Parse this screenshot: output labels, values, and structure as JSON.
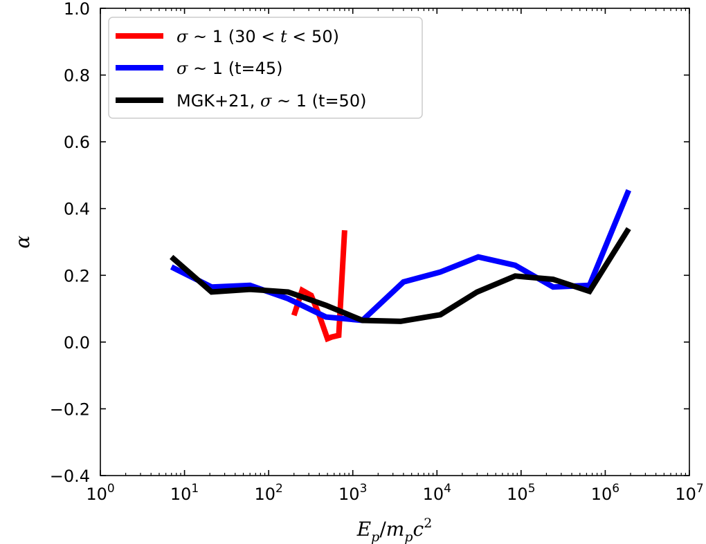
{
  "chart_data": {
    "type": "line",
    "title": "",
    "xlabel": "E_p/m_pc^2",
    "xlabel_parts": {
      "E": "E",
      "p": "p",
      "slash": "/",
      "m": "m",
      "c": "c",
      "two": "2"
    },
    "ylabel": "α",
    "xscale": "log",
    "xlim": [
      1,
      10000000
    ],
    "ylim": [
      -0.4,
      1.0
    ],
    "x_ticks": [
      {
        "value": 1,
        "base": "10",
        "exp": "0"
      },
      {
        "value": 10,
        "base": "10",
        "exp": "1"
      },
      {
        "value": 100,
        "base": "10",
        "exp": "2"
      },
      {
        "value": 1000,
        "base": "10",
        "exp": "3"
      },
      {
        "value": 10000,
        "base": "10",
        "exp": "4"
      },
      {
        "value": 100000,
        "base": "10",
        "exp": "5"
      },
      {
        "value": 1000000,
        "base": "10",
        "exp": "6"
      },
      {
        "value": 10000000,
        "base": "10",
        "exp": "7"
      }
    ],
    "y_ticks": [
      {
        "value": -0.4,
        "label": "−0.4"
      },
      {
        "value": -0.2,
        "label": "−0.2"
      },
      {
        "value": 0.0,
        "label": "0.0"
      },
      {
        "value": 0.2,
        "label": "0.2"
      },
      {
        "value": 0.4,
        "label": "0.4"
      },
      {
        "value": 0.6,
        "label": "0.6"
      },
      {
        "value": 0.8,
        "label": "0.8"
      },
      {
        "value": 1.0,
        "label": "1.0"
      }
    ],
    "legend_position": "top-left",
    "series": [
      {
        "name": "σ ~ 1 (30 < t < 50)",
        "color": "#ff0000",
        "x": [
          200,
          250,
          320,
          400,
          500,
          560,
          680,
          800
        ],
        "y": [
          0.08,
          0.155,
          0.14,
          0.08,
          0.01,
          0.015,
          0.02,
          0.335
        ]
      },
      {
        "name": "σ ~ 1 (t=45)",
        "color": "#0000ff",
        "x": [
          7,
          21,
          60,
          170,
          480,
          1300,
          4000,
          11000,
          31000,
          85000,
          240000,
          650000,
          1900000
        ],
        "y": [
          0.225,
          0.165,
          0.17,
          0.13,
          0.075,
          0.065,
          0.18,
          0.21,
          0.255,
          0.23,
          0.165,
          0.17,
          0.455
        ]
      },
      {
        "name": "MGK+21, σ ~ 1 (t=50)",
        "color": "#000000",
        "x": [
          7,
          21,
          60,
          170,
          480,
          1300,
          3700,
          11000,
          30000,
          85000,
          240000,
          650000,
          1900000
        ],
        "y": [
          0.255,
          0.15,
          0.158,
          0.15,
          0.11,
          0.065,
          0.062,
          0.082,
          0.15,
          0.198,
          0.188,
          0.152,
          0.34
        ]
      }
    ],
    "legend_labels": [
      {
        "sigma": "σ",
        "sim": "~",
        "one": "1",
        "rest": "(30",
        "lt1": "<",
        "t": "t",
        "lt2": "<",
        "end": "50)"
      },
      {
        "sigma": "σ",
        "sim": "~",
        "one": "1",
        "rest": "(t=45)"
      },
      {
        "prefix": "MGK+21,",
        "sigma": "σ",
        "sim": "~",
        "one": "1",
        "rest": "(t=50)"
      }
    ]
  }
}
